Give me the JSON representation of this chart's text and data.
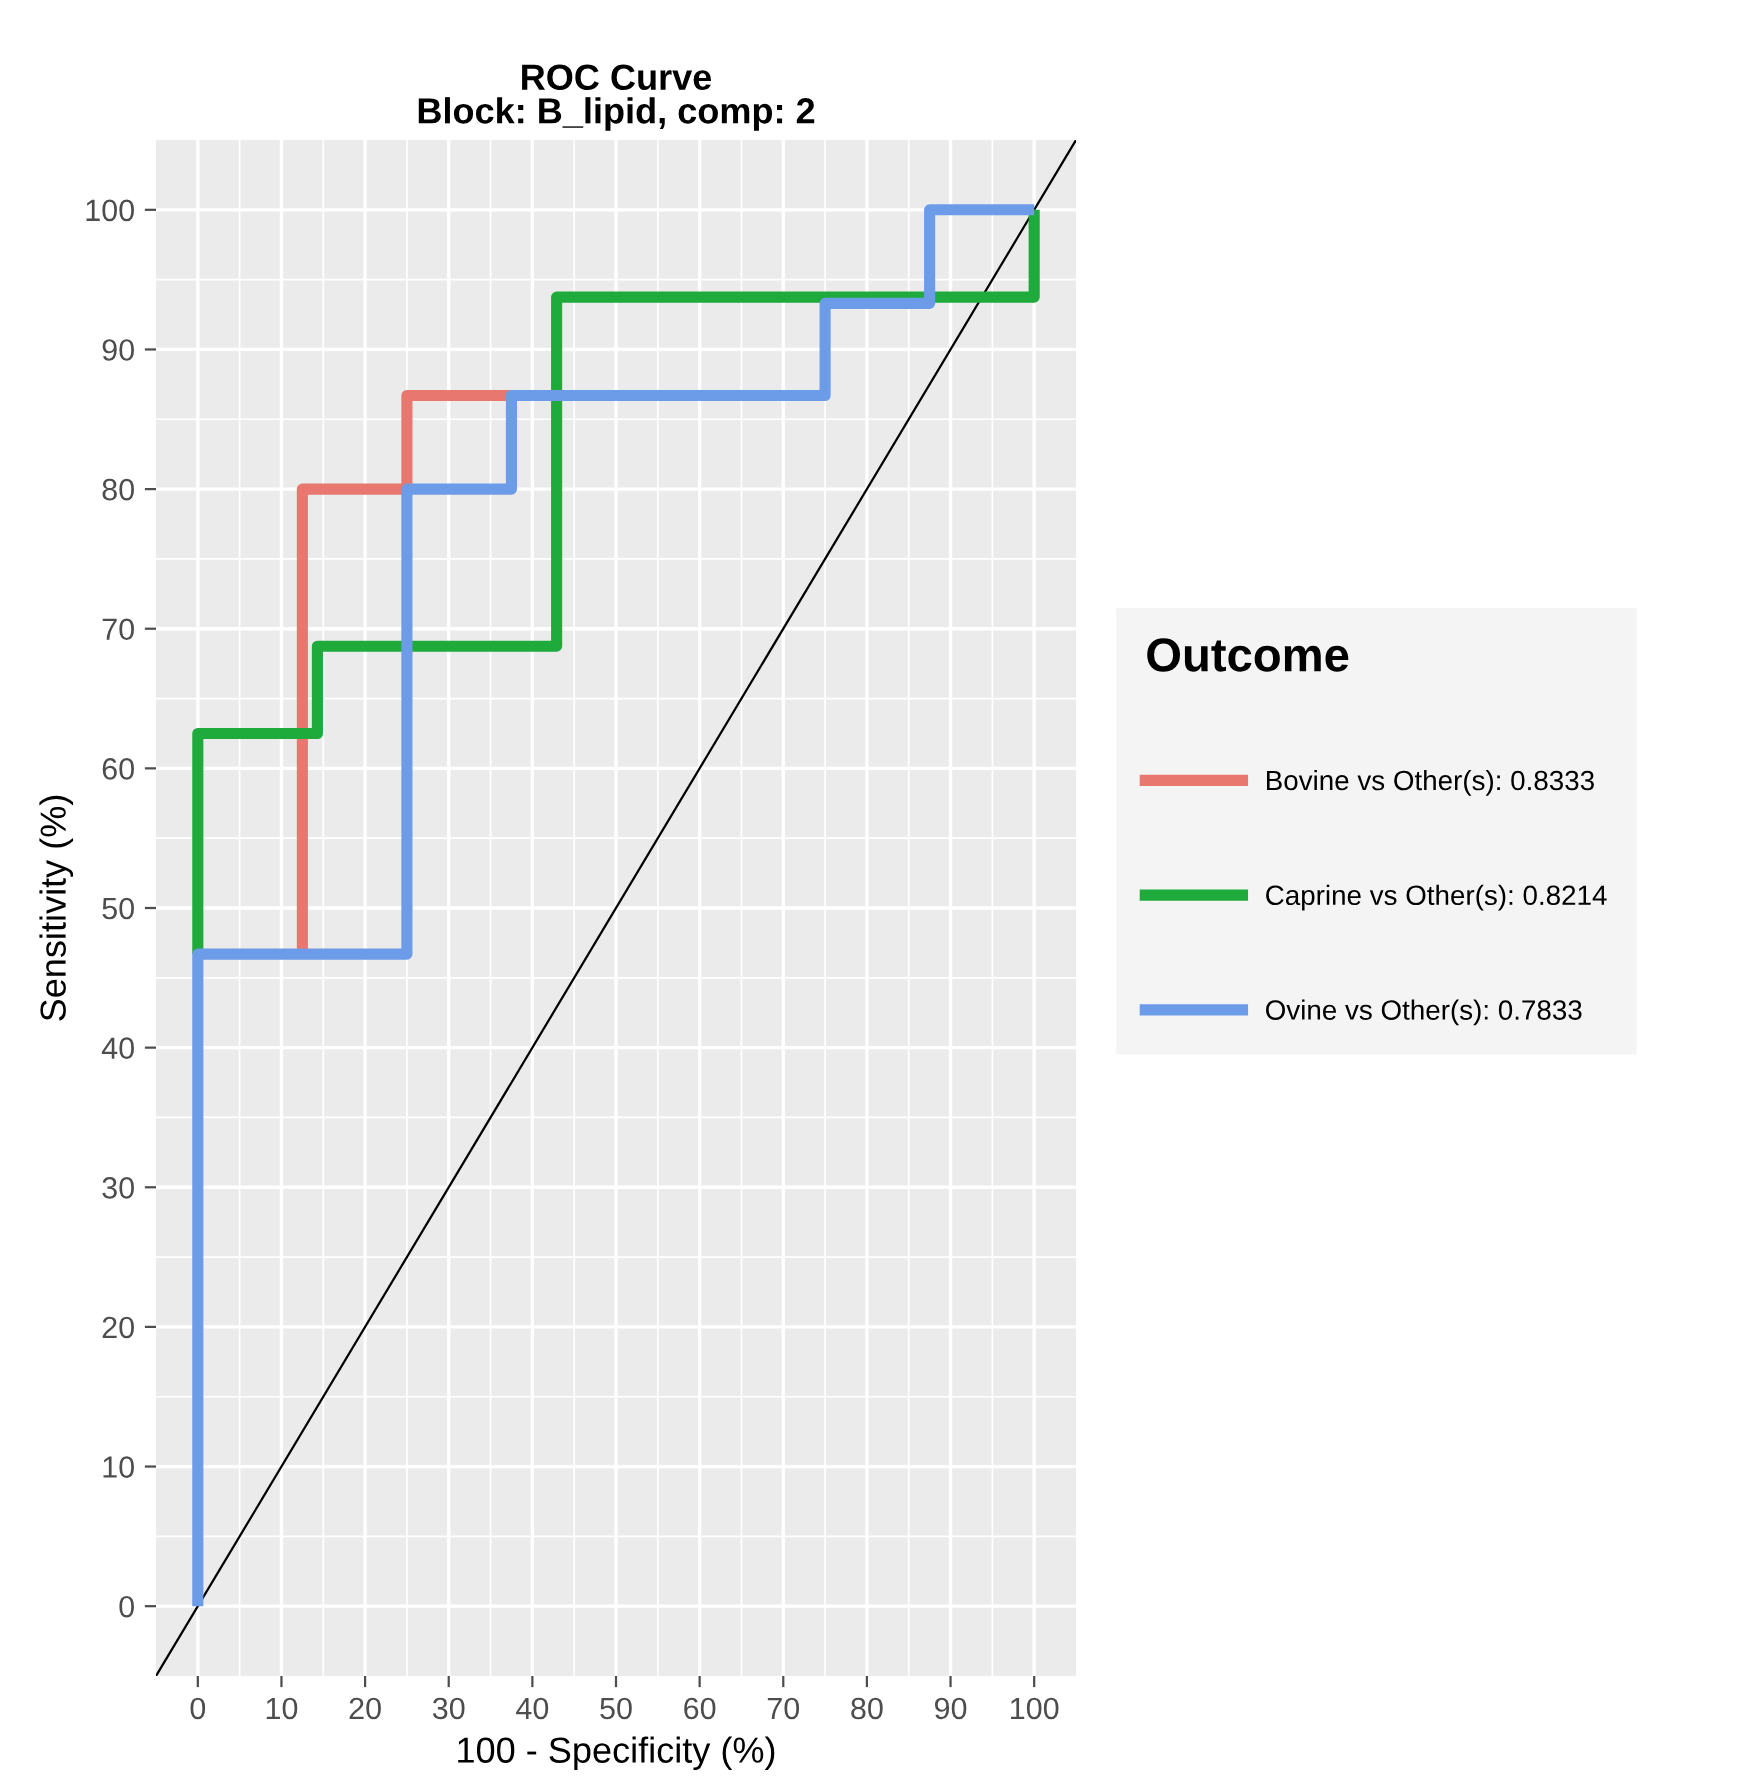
{
  "chart_data": {
    "type": "line",
    "title": "ROC Curve\nBlock: B_lipid, comp: 2",
    "xlabel": "100 - Specificity (%)",
    "ylabel": "Sensitivity (%)",
    "legend_title": "Outcome",
    "legend": "right",
    "xlim": [
      -5,
      105
    ],
    "ylim": [
      -5,
      105
    ],
    "xticks": [
      0,
      10,
      20,
      30,
      40,
      50,
      60,
      70,
      80,
      90,
      100
    ],
    "yticks": [
      0,
      10,
      20,
      30,
      40,
      50,
      60,
      70,
      80,
      90,
      100
    ],
    "grid": true,
    "line_style": "solid",
    "marker": "none",
    "series": [
      {
        "type": "line",
        "color": "#000000",
        "x": [
          -5,
          105
        ],
        "values": [
          -5,
          105
        ]
      },
      {
        "name": "Bovine vs Other(s): 0.8333",
        "color": "#e8776f",
        "x": [
          12.5,
          12.5,
          25,
          25,
          37.5
        ],
        "values": [
          46.7,
          80,
          80,
          86.7,
          86.7
        ]
      },
      {
        "name": "Caprine vs Other(s): 0.8214",
        "color": "#1fab3c",
        "x": [
          0,
          0,
          14.3,
          14.3,
          42.9,
          42.9,
          100,
          100
        ],
        "values": [
          46.7,
          62.5,
          62.5,
          68.75,
          68.75,
          93.75,
          93.75,
          100
        ]
      },
      {
        "name": "Ovine vs Other(s): 0.7833",
        "color": "#6c9ce8",
        "x": [
          0,
          0,
          25,
          25,
          37.5,
          37.5,
          75,
          75,
          87.5,
          87.5,
          100
        ],
        "values": [
          0,
          46.7,
          46.7,
          80,
          80,
          86.7,
          86.7,
          93.3,
          93.3,
          100,
          100
        ]
      }
    ]
  }
}
